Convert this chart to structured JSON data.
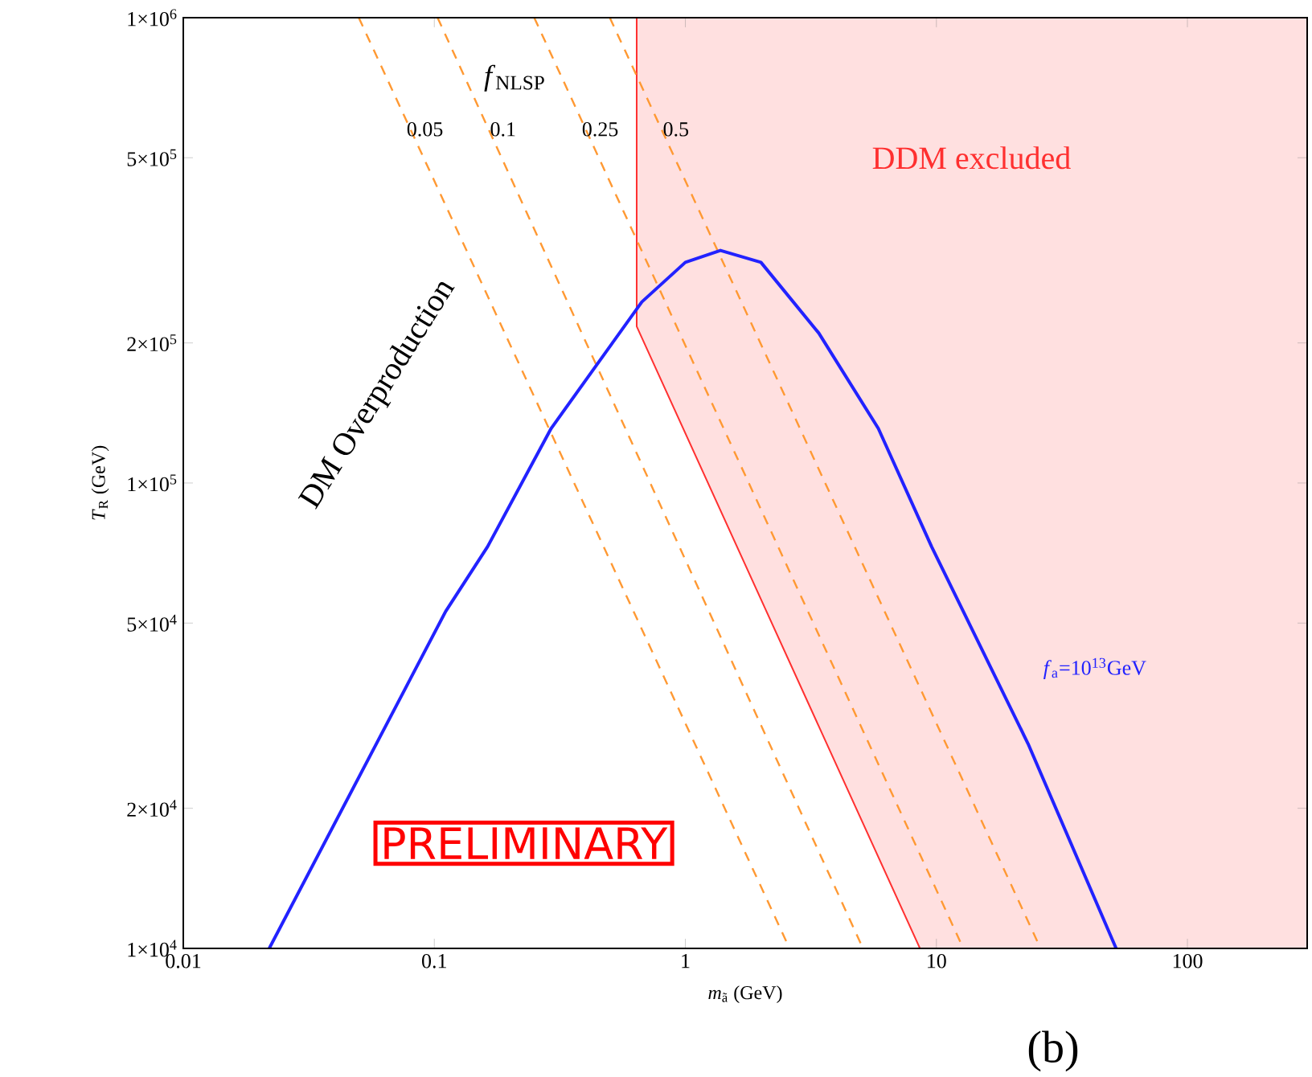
{
  "chart_data": {
    "type": "line",
    "xlabel": "*m*$_{ã}$ (GeV)",
    "ylabel": "*T*$_{R}$ (GeV)",
    "legend_title": "*f*$_{NLSP}$",
    "log": "xy",
    "xlim": [
      0.01,
      300
    ],
    "ylim": [
      10000,
      1000000
    ],
    "xticks": [
      0.01,
      0.1,
      1,
      10,
      100
    ],
    "yticks": [
      {
        "value": 10000,
        "label": "1×10$^{4}$"
      },
      {
        "value": 20000,
        "label": "2×10$^{4}$"
      },
      {
        "value": 50000,
        "label": "5×10$^{4}$"
      },
      {
        "value": 100000,
        "label": "1×10$^{5}$"
      },
      {
        "value": 200000,
        "label": "2×10$^{5}$"
      },
      {
        "value": 500000,
        "label": "5×10$^{5}$"
      },
      {
        "value": 1000000,
        "label": "1×10$^{6}$"
      }
    ],
    "series": [
      {
        "type": "area",
        "color": "#ff3030",
        "x": [
          0.64,
          0.64,
          8.6,
          300,
          300
        ],
        "values": [
          1000000,
          217000,
          10000,
          10000,
          1000000
        ]
      },
      {
        "name": "0.05",
        "color": "#ff9933",
        "line_style": "dashed",
        "x": [
          0.05,
          2.6
        ],
        "values": [
          1000000,
          10000
        ]
      },
      {
        "name": "0.1",
        "color": "#ff9933",
        "line_style": "dashed",
        "x": [
          0.103,
          5.1
        ],
        "values": [
          1000000,
          10000
        ]
      },
      {
        "name": "0.25",
        "color": "#ff9933",
        "line_style": "dashed",
        "x": [
          0.25,
          12.8
        ],
        "values": [
          1000000,
          10000
        ]
      },
      {
        "name": "0.5",
        "color": "#ff9933",
        "line_style": "dashed",
        "x": [
          0.5,
          26
        ],
        "values": [
          1000000,
          10000
        ]
      },
      {
        "name": "*f*$_{a}$=10$^{13}$GeV",
        "color": "#2222ff",
        "line_style": "solid",
        "x": [
          0.022,
          0.111,
          0.163,
          0.292,
          0.671,
          1.0,
          1.38,
          2.0,
          3.4,
          5.87,
          9.57,
          23.2,
          52
        ],
        "values": [
          10000,
          53000,
          73000,
          131000,
          245000,
          298000,
          316000,
          298000,
          210000,
          131000,
          73000,
          27500,
          10000
        ]
      }
    ],
    "annotations": [
      "DDM excluded",
      "DM Overproduction",
      "PRELIMINARY",
      "(b)"
    ]
  }
}
